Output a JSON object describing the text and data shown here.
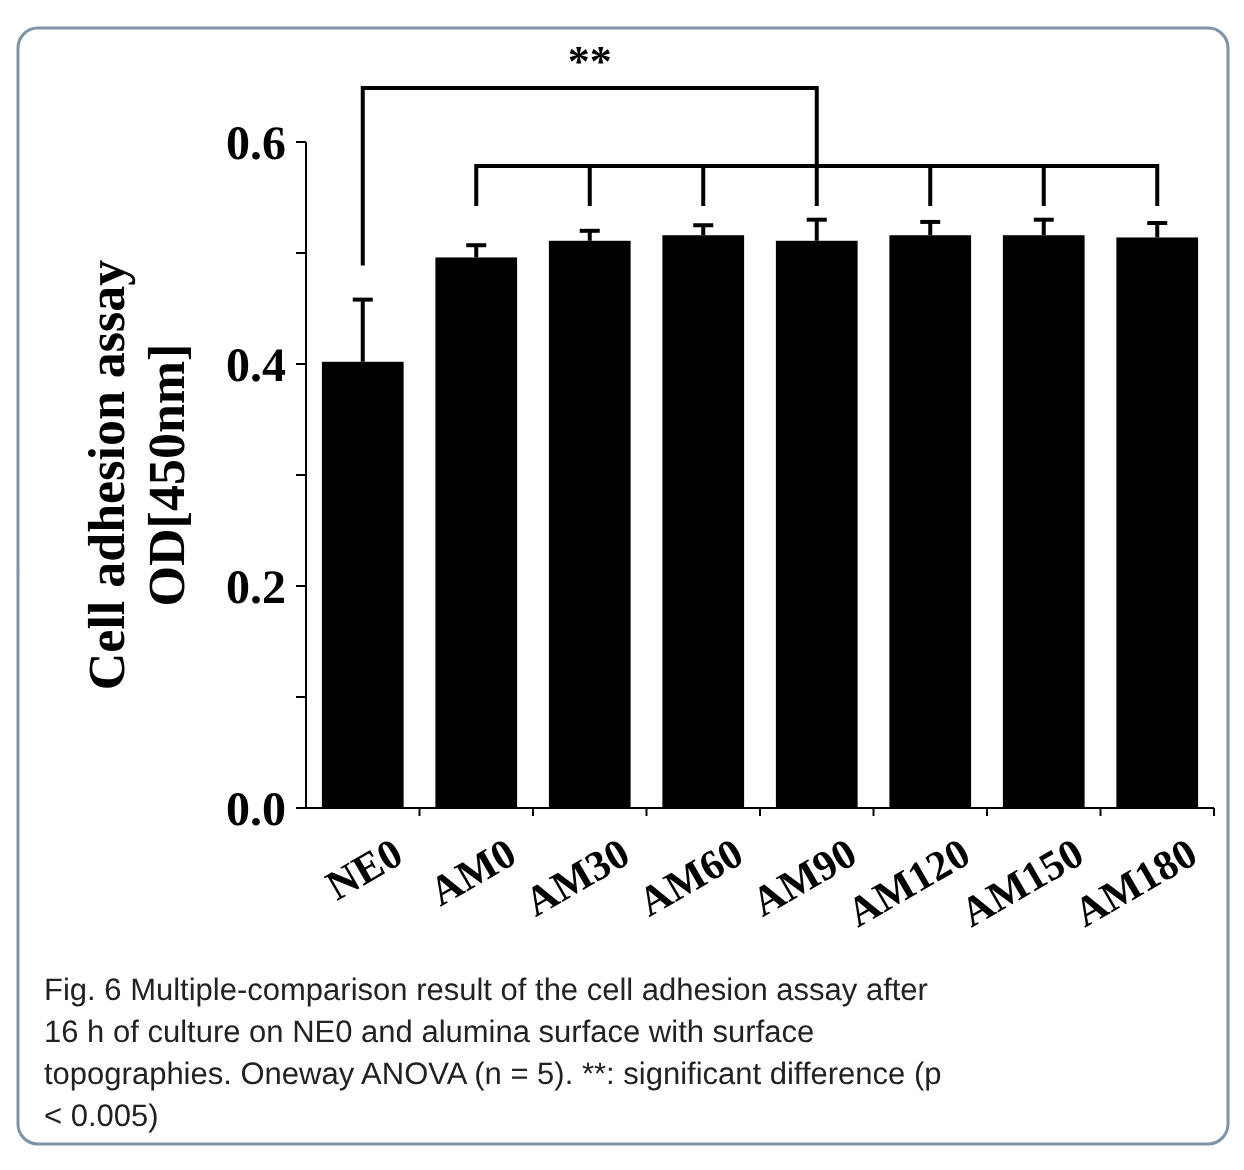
{
  "chart_data": {
    "type": "bar",
    "ylabel": "Cell adhesion assay\nOD[450nm]",
    "categories": [
      "NE0",
      "AM0",
      "AM30",
      "AM60",
      "AM90",
      "AM120",
      "AM150",
      "AM180"
    ],
    "values": [
      0.402,
      0.496,
      0.511,
      0.516,
      0.511,
      0.516,
      0.516,
      0.514
    ],
    "errors": [
      0.056,
      0.011,
      0.009,
      0.009,
      0.019,
      0.012,
      0.014,
      0.013
    ],
    "color": "#000000",
    "ylim": [
      0,
      0.6
    ],
    "yticks": [
      {
        "value": 0,
        "label": "0.0"
      },
      {
        "value": 0.1,
        "label": null
      },
      {
        "value": 0.2,
        "label": "0.2"
      },
      {
        "value": 0.3,
        "label": null
      },
      {
        "value": 0.4,
        "label": "0.4"
      },
      {
        "value": 0.5,
        "label": null
      },
      {
        "value": 0.6,
        "label": "0.6"
      }
    ],
    "annotations": [
      "**",
      "Fig. 6 Multiple-comparison result of the cell adhesion assay after 16 h of culture on NE0 and alumina surface with surface topographies. Oneway ANOVA (n = 5). **: significant difference (p < 0.005)"
    ],
    "grid": false
  }
}
